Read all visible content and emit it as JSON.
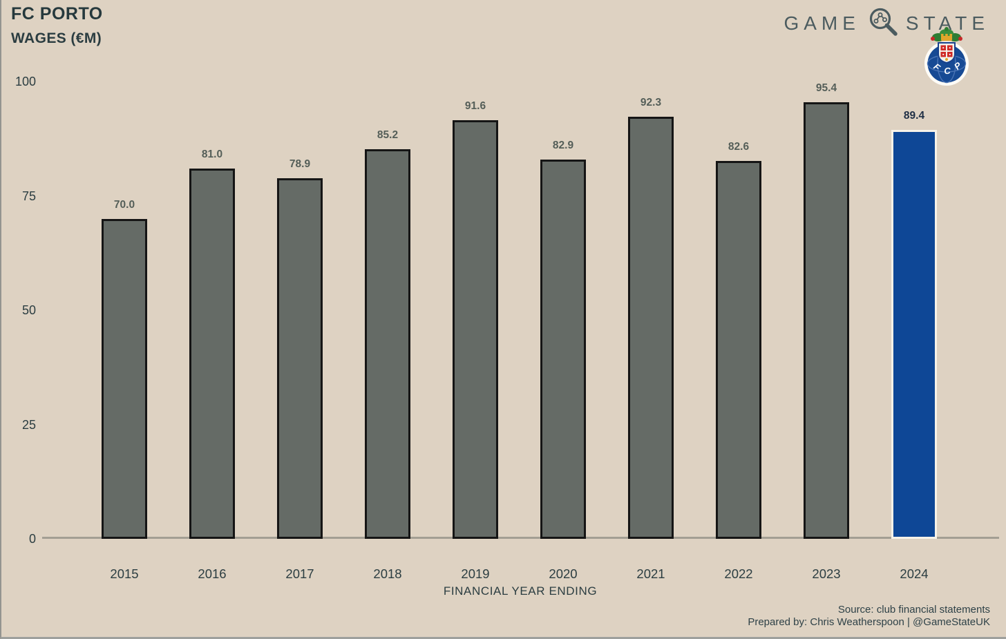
{
  "header": {
    "title": "FC PORTO",
    "subtitle": "WAGES (€M)"
  },
  "brand": {
    "logo_word_left": "GAME",
    "logo_word_right": "STATE",
    "magnifier_icon": "magnifier-network-icon",
    "crest_icon": "fc-porto-crest"
  },
  "chart_data": {
    "type": "bar",
    "title": "FC PORTO — WAGES (€M)",
    "categories": [
      "2015",
      "2016",
      "2017",
      "2018",
      "2019",
      "2020",
      "2021",
      "2022",
      "2023",
      "2024"
    ],
    "values": [
      70.0,
      81.0,
      78.9,
      85.2,
      91.6,
      82.9,
      92.3,
      82.6,
      95.4,
      89.4
    ],
    "bar_labels": [
      "70.0",
      "81.0",
      "78.9",
      "85.2",
      "91.6",
      "82.9",
      "92.3",
      "82.6",
      "95.4",
      "89.4"
    ],
    "xlabel": "FINANCIAL YEAR ENDING",
    "ylabel": "WAGES (€M)",
    "ylim": [
      0,
      100
    ],
    "yticks": [
      0,
      25,
      50,
      75,
      100
    ],
    "grid": false,
    "legend": "none",
    "highlight_index": 9,
    "bar_color": "#656b66",
    "bar_border_color": "#151515",
    "highlight_color": "#0e4796",
    "highlight_border_color": "#f7f2e8",
    "label_color": "#545e58",
    "highlight_label_color": "#1f2f45"
  },
  "footer": {
    "source": "Source: club financial statements",
    "prepared_by": "Prepared by: Chris Weatherspoon | @GameStateUK"
  },
  "colors": {
    "background": "#ded2c2",
    "heading_text": "#26393d",
    "tick_text": "#2b3d41",
    "axis_line": "#a39e93",
    "logo_text": "#4b5b5f"
  }
}
